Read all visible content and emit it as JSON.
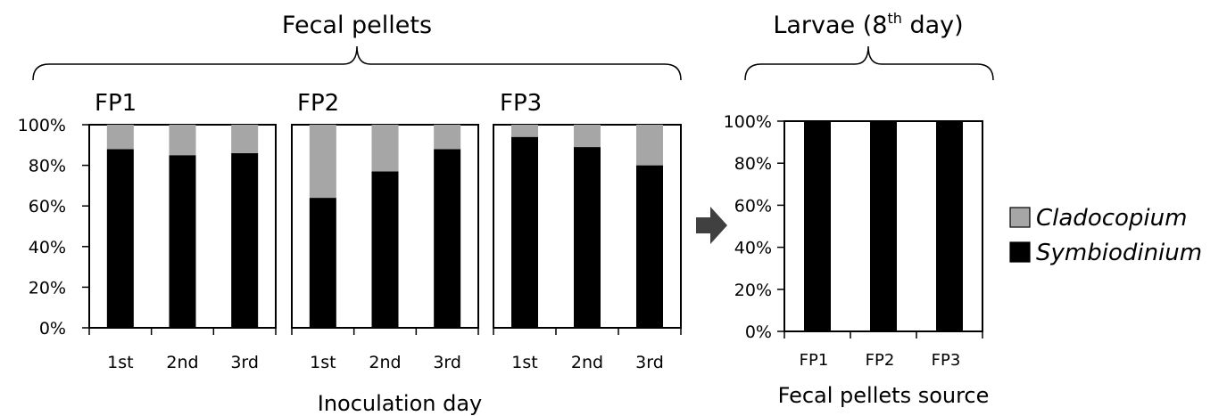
{
  "header": {
    "left_title": "Fecal pellets",
    "right_title_base": "Larvae (8",
    "right_title_sup": "th",
    "right_title_end": " day)"
  },
  "left_axis": {
    "yticks": [
      "100%",
      "80%",
      "60%",
      "40%",
      "20%",
      "0%"
    ],
    "xlabel": "Inoculation day"
  },
  "right_axis": {
    "yticks": [
      "100%",
      "80%",
      "60%",
      "40%",
      "20%",
      "0%"
    ],
    "xlabel": "Fecal pellets source"
  },
  "legend": {
    "items": [
      {
        "label": "Cladocopium",
        "color": "#a6a6a6"
      },
      {
        "label": "Symbiodinium",
        "color": "#000000"
      }
    ]
  },
  "colors": {
    "cladocopium": "#a6a6a6",
    "symbiodinium": "#000000",
    "arrow": "#404040"
  },
  "chart_data": [
    {
      "type": "bar",
      "stacked": true,
      "title": "FP1",
      "categories": [
        "1st",
        "2nd",
        "3rd"
      ],
      "series": [
        {
          "name": "Symbiodinium",
          "values": [
            88,
            85,
            86
          ]
        },
        {
          "name": "Cladocopium",
          "values": [
            12,
            15,
            14
          ]
        }
      ],
      "ylim": [
        0,
        100
      ],
      "ylabel_format": "percent"
    },
    {
      "type": "bar",
      "stacked": true,
      "title": "FP2",
      "categories": [
        "1st",
        "2nd",
        "3rd"
      ],
      "series": [
        {
          "name": "Symbiodinium",
          "values": [
            64,
            77,
            88
          ]
        },
        {
          "name": "Cladocopium",
          "values": [
            36,
            23,
            12
          ]
        }
      ],
      "ylim": [
        0,
        100
      ]
    },
    {
      "type": "bar",
      "stacked": true,
      "title": "FP3",
      "categories": [
        "1st",
        "2nd",
        "3rd"
      ],
      "series": [
        {
          "name": "Symbiodinium",
          "values": [
            94,
            89,
            80
          ]
        },
        {
          "name": "Cladocopium",
          "values": [
            6,
            11,
            20
          ]
        }
      ],
      "ylim": [
        0,
        100
      ]
    },
    {
      "type": "bar",
      "stacked": true,
      "title": "",
      "categories": [
        "FP1",
        "FP2",
        "FP3"
      ],
      "series": [
        {
          "name": "Symbiodinium",
          "values": [
            100,
            100,
            100
          ]
        },
        {
          "name": "Cladocopium",
          "values": [
            0,
            0,
            0
          ]
        }
      ],
      "ylim": [
        0,
        100
      ]
    }
  ]
}
